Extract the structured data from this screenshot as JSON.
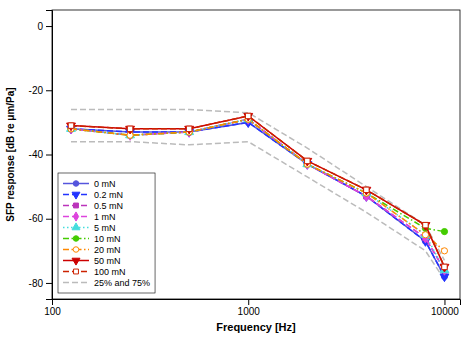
{
  "chart_data": {
    "type": "line",
    "xlabel": "Frequency [Hz]",
    "ylabel": "SFP response [dB re μm/Pa]",
    "log": "x",
    "grid": false,
    "legend": "lower left",
    "xlim": [
      100,
      12000
    ],
    "xticks": [
      100,
      1000,
      10000
    ],
    "ylim": [
      -85,
      5
    ],
    "yticks": [
      0,
      -20,
      -40,
      -60,
      -80
    ],
    "x": [
      125,
      250,
      500,
      1000,
      2000,
      4000,
      8000,
      10000
    ],
    "series": [
      {
        "name": "0 mN",
        "color": "#5555dd",
        "line_style": "solid",
        "marker": "circle",
        "values": [
          -32,
          -33,
          -33,
          -30,
          -43,
          -53,
          -67,
          -78
        ]
      },
      {
        "name": "0.2 mN",
        "color": "#2233ff",
        "line_style": "dashed",
        "marker": "triangle-down",
        "values": [
          -32,
          -33,
          -33,
          -30,
          -43,
          -53,
          -67,
          -78
        ]
      },
      {
        "name": "0.5 mN",
        "color": "#bb33bb",
        "line_style": "dashed",
        "marker": "square",
        "values": [
          -32,
          -34,
          -33,
          -29,
          -43,
          -53,
          -66,
          -76
        ]
      },
      {
        "name": "1 mN",
        "color": "#dd44dd",
        "line_style": "dashed",
        "marker": "diamond",
        "values": [
          -32,
          -34,
          -33,
          -29,
          -43,
          -53,
          -66,
          -76
        ]
      },
      {
        "name": "5 mN",
        "color": "#44dddd",
        "line_style": "dotted",
        "marker": "triangle-up",
        "values": [
          -32,
          -34,
          -33,
          -29,
          -43,
          -52,
          -65,
          -76
        ]
      },
      {
        "name": "10 mN",
        "color": "#44cc00",
        "line_style": "dashdot",
        "marker": "circle",
        "values": [
          -32,
          -34,
          -33,
          -29,
          -43,
          -52,
          -63,
          -64
        ]
      },
      {
        "name": "20 mN",
        "color": "#ff8800",
        "line_style": "dashdot",
        "marker": "circle-open",
        "values": [
          -32,
          -34,
          -33,
          -29,
          -43,
          -52,
          -65,
          -70
        ]
      },
      {
        "name": "50 mN",
        "color": "#cc0000",
        "line_style": "solid",
        "marker": "triangle-down",
        "values": [
          -31,
          -32,
          -32,
          -28,
          -42,
          -51,
          -62,
          -75
        ]
      },
      {
        "name": "100 mN",
        "color": "#cc2200",
        "line_style": "dashed",
        "marker": "square-open",
        "values": [
          -31,
          -32,
          -32,
          -28,
          -42,
          -51,
          -62,
          -75
        ]
      },
      {
        "name": "25% and 75%",
        "color": "#bbbbbb",
        "line_style": "dashed",
        "marker": "none",
        "values": [
          -26,
          -26,
          -26,
          -27,
          -38,
          -50,
          -62,
          -73
        ],
        "lower": [
          -36,
          -36,
          -37,
          -36,
          -47,
          -58,
          -70,
          -79
        ]
      }
    ]
  }
}
